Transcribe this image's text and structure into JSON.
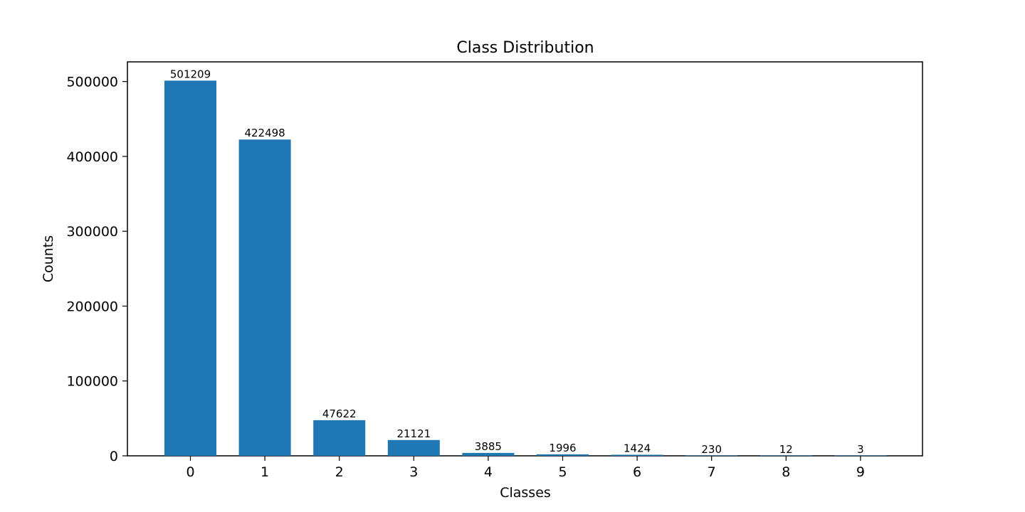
{
  "chart_data": {
    "type": "bar",
    "title": "Class Distribution",
    "xlabel": "Classes",
    "ylabel": "Counts",
    "categories": [
      "0",
      "1",
      "2",
      "3",
      "4",
      "5",
      "6",
      "7",
      "8",
      "9"
    ],
    "values": [
      501209,
      422498,
      47622,
      21121,
      3885,
      1996,
      1424,
      230,
      12,
      3
    ],
    "data_labels": [
      "501209",
      "422498",
      "47622",
      "21121",
      "3885",
      "1996",
      "1424",
      "230",
      "12",
      "3"
    ],
    "yticks": [
      0,
      100000,
      200000,
      300000,
      400000,
      500000
    ],
    "ytick_labels": [
      "0",
      "100000",
      "200000",
      "300000",
      "400000",
      "500000"
    ],
    "ylim": [
      0,
      526269
    ],
    "grid": false,
    "legend": "none",
    "bar_color": "#1f77b4"
  }
}
